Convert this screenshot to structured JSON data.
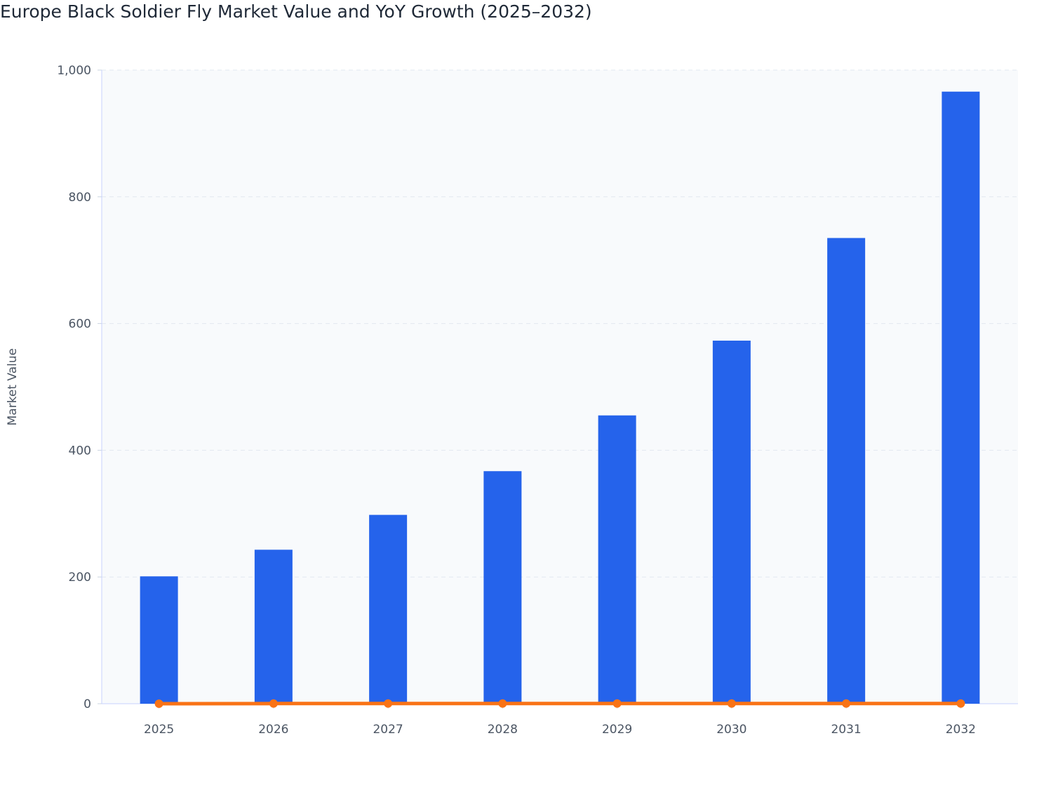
{
  "chart_data": {
    "type": "bar",
    "title": "Europe Black Soldier Fly Market Value and YoY Growth (2025–2032)",
    "xlabel": "",
    "ylabel": "Market Value",
    "ylim": [
      0,
      1000
    ],
    "yticks": [
      0,
      200,
      400,
      600,
      800,
      1000
    ],
    "ytick_labels": [
      "0",
      "200",
      "400",
      "600",
      "800",
      "1,000"
    ],
    "grid": true,
    "categories": [
      "2025",
      "2026",
      "2027",
      "2028",
      "2029",
      "2030",
      "2031",
      "2032"
    ],
    "series": [
      {
        "type": "bar",
        "color": "#2563eb",
        "values": [
          201,
          243,
          298,
          367,
          455,
          573,
          735,
          966
        ]
      },
      {
        "type": "line",
        "color": "#f97316",
        "values": [
          0,
          0.21,
          0.22,
          0.23,
          0.24,
          0.26,
          0.28,
          0.31
        ]
      }
    ]
  }
}
